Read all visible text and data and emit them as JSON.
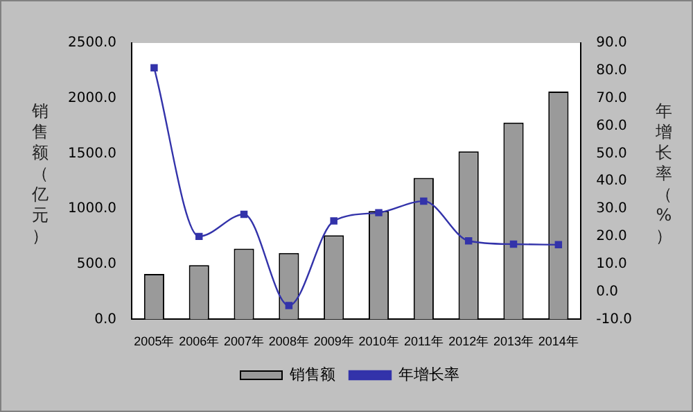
{
  "chart_data": {
    "type": "bar",
    "categories": [
      "2005年",
      "2006年",
      "2007年",
      "2008年",
      "2009年",
      "2010年",
      "2011年",
      "2012年",
      "2013年",
      "2014年"
    ],
    "series": [
      {
        "name": "销售额",
        "color": "#9a9a9a",
        "values": [
          410,
          490,
          640,
          600,
          760,
          980,
          1280,
          1520,
          1780,
          2060
        ]
      },
      {
        "name": "年增长率",
        "type": "line",
        "axis": "y2",
        "color": "#3333aa",
        "marker": "square",
        "values": [
          81,
          20,
          28,
          -5,
          25.6,
          28.6,
          32.8,
          18.4,
          17.2,
          17
        ]
      }
    ],
    "ylabel": "销售额（亿元）",
    "y2label": "年增长率（%）",
    "ylim": [
      0,
      2500
    ],
    "yticks": [
      {
        "value": 0,
        "label": "0.0"
      },
      {
        "value": 500,
        "label": "500.0"
      },
      {
        "value": 1000,
        "label": "1000.0"
      },
      {
        "value": 1500,
        "label": "1500.0"
      },
      {
        "value": 2000,
        "label": "2000.0"
      },
      {
        "value": 2500,
        "label": "2500.0"
      }
    ],
    "y2lim": [
      -10,
      90
    ],
    "y2ticks": [
      {
        "value": -10,
        "label": "-10.0"
      },
      {
        "value": 0,
        "label": "0.0"
      },
      {
        "value": 10,
        "label": "10.0"
      },
      {
        "value": 20,
        "label": "20.0"
      },
      {
        "value": 30,
        "label": "30.0"
      },
      {
        "value": 40,
        "label": "40.0"
      },
      {
        "value": 50,
        "label": "50.0"
      },
      {
        "value": 60,
        "label": "60.0"
      },
      {
        "value": 70,
        "label": "70.0"
      },
      {
        "value": 80,
        "label": "80.0"
      },
      {
        "value": 90,
        "label": "90.0"
      }
    ],
    "legend": "bottom",
    "grid": false
  }
}
